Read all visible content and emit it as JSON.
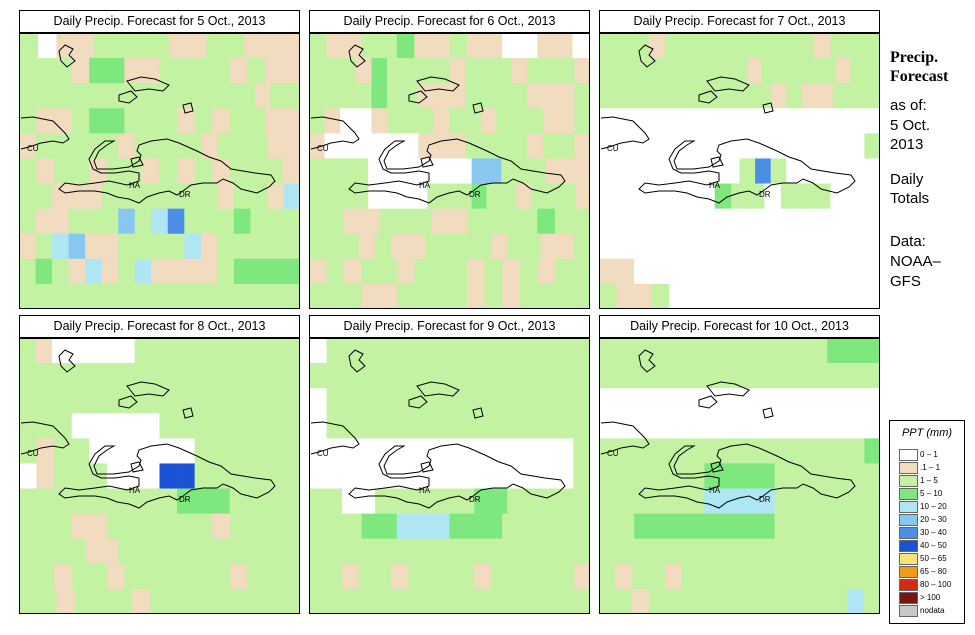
{
  "panels": [
    {
      "title": "Daily Precip. Forecast for  5 Oct., 2013",
      "grid": [
        "2.1122221122111",
        "2221331122221211",
        "2222222222222222122",
        "2112332221212211",
        "12222212222122211",
        "2122122121212221",
        "22111222222212214",
        "21122252462223222",
        "12451122224122222",
        "23214124111123333",
        "22222222222222222"
      ]
    },
    {
      "title": "Daily Precip. Forecast for  6 Oct., 2013",
      "grid": [
        "2112231121100110",
        "222132222122212221",
        "222232211122221112",
        "210012221221222112",
        "100000011122221221",
        "2222000000055222111",
        "2222000022232212221",
        "2211222112222322",
        "22212112222122112",
        "1212212221212122",
        "2221122221212222"
      ]
    },
    {
      "title": "Daily Precip. Forecast for  7 Oct., 2013",
      "grid": [
        "22212222222221222",
        "2222222222122222122",
        "222222222221211222",
        "000000000000000000",
        "000000000000000002",
        "000000000262000000",
        "00000003220222000",
        "0000000000000000",
        "0000000000000000",
        "1100000000000000",
        "2112000000000000"
      ]
    },
    {
      "title": "Daily Precip. Forecast for  8 Oct., 2013",
      "grid": [
        "21000002222222222",
        "222222222222222222",
        "2222222222222222",
        "2220000022222222",
        "2122000000222222",
        "0122200077222222",
        "2222222223332222",
        "2221122222212222",
        "22221122222222222",
        "2212212222221222",
        "221222122222222"
      ]
    },
    {
      "title": "Daily Precip. Forecast for  9 Oct., 2013",
      "grid": [
        "0222222222222222",
        "2222222222222222",
        "0222222222222222",
        "0222222222222222",
        "00000000000000002",
        "00000000000000002",
        "22002222223322222",
        "2223344433322222",
        "2222222222222222",
        "22122122221222221",
        "2222222222222222"
      ]
    },
    {
      "title": "Daily Precip. Forecast for  10 Oct., 2013",
      "grid": [
        "2222222222222333",
        "2222222222222222",
        "000000000000000",
        "00000000000000",
        "222222222222222223",
        "2222223333222222",
        "2222224444222222",
        "2233333333222222",
        "2222222222222222",
        "21221222222222222",
        "22122222222222242"
      ]
    }
  ],
  "map_labels": {
    "cu": "CU",
    "ha": "HA",
    "dr": "DR"
  },
  "side": {
    "heading_line1": "Precip.",
    "heading_line2": "Forecast",
    "as_of_label": "as of:",
    "date_line1": "5 Oct.",
    "date_line2": "2013",
    "totals_line1": "Daily",
    "totals_line2": "Totals",
    "data_label": "Data:",
    "source_line1": "NOAA–",
    "source_line2": "GFS"
  },
  "legend": {
    "title": "PPT (mm)",
    "items": [
      {
        "label": "0 – 1",
        "color": "#ffffff"
      },
      {
        "label": ".1 – 1",
        "color": "#f2dcc0"
      },
      {
        "label": "1 – 5",
        "color": "#c2f2a2"
      },
      {
        "label": "5 – 10",
        "color": "#7ee87e"
      },
      {
        "label": "10 – 20",
        "color": "#aee6f4"
      },
      {
        "label": "20 – 30",
        "color": "#88c8f0"
      },
      {
        "label": "30 – 40",
        "color": "#4a8ee6"
      },
      {
        "label": "40 – 50",
        "color": "#1b52d6"
      },
      {
        "label": "50 – 65",
        "color": "#f6e27e"
      },
      {
        "label": "65 – 80",
        "color": "#f49a1a"
      },
      {
        "label": "80 – 100",
        "color": "#d42a12"
      },
      {
        "label": "> 100",
        "color": "#7a1410"
      },
      {
        "label": "nodata",
        "color": "#c8c8c8"
      }
    ]
  }
}
